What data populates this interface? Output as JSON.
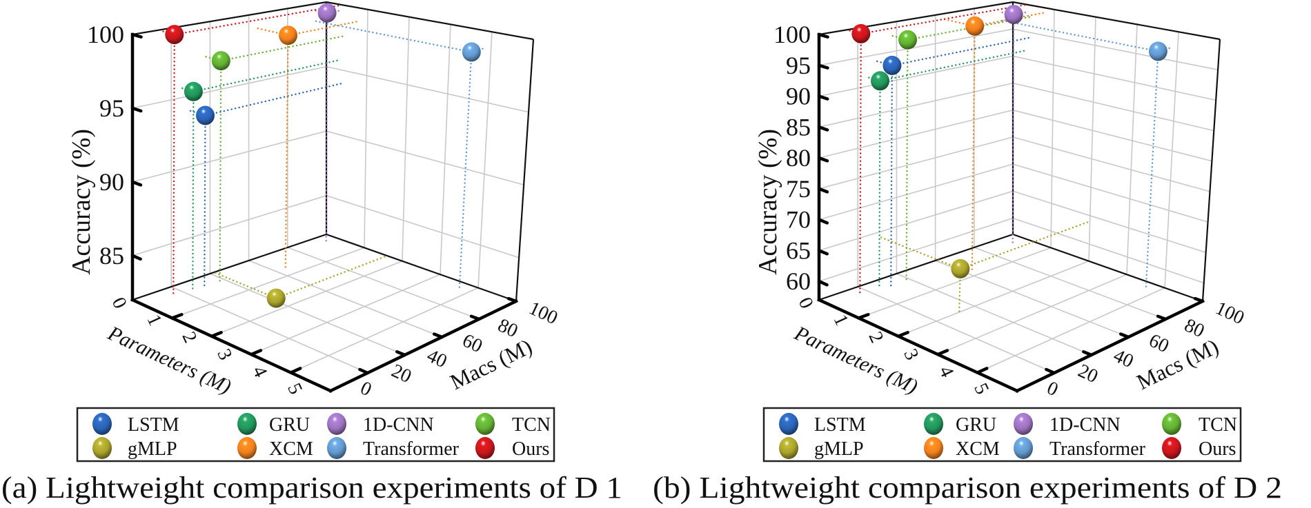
{
  "legend_colors": {
    "LSTM": "#2b63b6",
    "GRU": "#23955c",
    "1D-CNN": "#9c72bf",
    "TCN": "#62b033",
    "gMLP": "#a9a22c",
    "XCM": "#f0801d",
    "Transformer": "#6298cc",
    "Ours": "#c8171d"
  },
  "legend_order": [
    "LSTM",
    "GRU",
    "1D-CNN",
    "TCN",
    "gMLP",
    "XCM",
    "Transformer",
    "Ours"
  ],
  "chart_data": [
    {
      "type": "scatter",
      "projection": "3d",
      "caption": "(a) Lightweight comparison experiments of D 1",
      "xlabel": "Parameters (M)",
      "ylabel": "Macs (M)",
      "zlabel": "Accuracy (%)",
      "xlim": [
        0,
        5
      ],
      "ylim": [
        0,
        100
      ],
      "zlim": [
        82,
        100
      ],
      "xticks": [
        "0",
        "1",
        "2",
        "3",
        "4",
        "5"
      ],
      "yticks": [
        "0",
        "20",
        "40",
        "60",
        "80",
        "100"
      ],
      "zticks": [
        "85",
        "90",
        "95",
        "100"
      ],
      "grid": true,
      "legend_position": "bottom",
      "series": [
        {
          "name": "LSTM",
          "params": 0.4,
          "macs": 29,
          "accuracy": 94.0
        },
        {
          "name": "GRU",
          "params": 0.3,
          "macs": 25,
          "accuracy": 95.7
        },
        {
          "name": "1D-CNN",
          "params": 0.3,
          "macs": 94,
          "accuracy": 99.5
        },
        {
          "name": "TCN",
          "params": 0.4,
          "macs": 37,
          "accuracy": 97.6
        },
        {
          "name": "gMLP",
          "params": 1.6,
          "macs": 42,
          "accuracy": 82.0
        },
        {
          "name": "XCM",
          "params": 0.8,
          "macs": 63,
          "accuracy": 99.0
        },
        {
          "name": "Transformer",
          "params": 3.8,
          "macs": 94,
          "accuracy": 98.7
        },
        {
          "name": "Ours",
          "params": 0.3,
          "macs": 15,
          "accuracy": 99.9
        }
      ]
    },
    {
      "type": "scatter",
      "projection": "3d",
      "caption": "(b) Lightweight comparison experiments of D 2",
      "xlabel": "Parameters (M)",
      "ylabel": "Macs (M)",
      "zlabel": "Accuracy (%)",
      "xlim": [
        0,
        5
      ],
      "ylim": [
        0,
        100
      ],
      "zlim": [
        57,
        100
      ],
      "xticks": [
        "0",
        "1",
        "2",
        "3",
        "4",
        "5"
      ],
      "yticks": [
        "0",
        "20",
        "40",
        "60",
        "80",
        "100"
      ],
      "zticks": [
        "60",
        "65",
        "70",
        "75",
        "80",
        "85",
        "90",
        "95",
        "100"
      ],
      "grid": true,
      "legend_position": "bottom",
      "series": [
        {
          "name": "LSTM",
          "params": 0.4,
          "macs": 29,
          "accuracy": 94.0
        },
        {
          "name": "GRU",
          "params": 0.3,
          "macs": 25,
          "accuracy": 91.5
        },
        {
          "name": "1D-CNN",
          "params": 0.3,
          "macs": 94,
          "accuracy": 98.5
        },
        {
          "name": "TCN",
          "params": 0.4,
          "macs": 37,
          "accuracy": 97.8
        },
        {
          "name": "gMLP",
          "params": 2.0,
          "macs": 32,
          "accuracy": 64.0
        },
        {
          "name": "XCM",
          "params": 0.8,
          "macs": 63,
          "accuracy": 99.2
        },
        {
          "name": "Transformer",
          "params": 3.8,
          "macs": 94,
          "accuracy": 97.0
        },
        {
          "name": "Ours",
          "params": 0.3,
          "macs": 15,
          "accuracy": 99.9
        }
      ]
    }
  ]
}
